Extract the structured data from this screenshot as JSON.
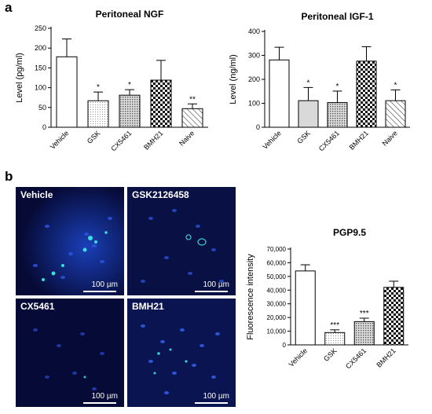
{
  "panels": {
    "a_letter": "a",
    "b_letter": "b"
  },
  "micrographs": [
    {
      "label": "Vehicle",
      "scale": "100 µm"
    },
    {
      "label": "GSK2126458",
      "scale": "100 µm"
    },
    {
      "label": "CX5461",
      "scale": "100 µm"
    },
    {
      "label": "BMH21",
      "scale": "100 µm"
    }
  ],
  "chart_data": [
    {
      "type": "bar",
      "title": "Peritoneal NGF",
      "ylabel": "Level (pg/ml)",
      "xlabel": "",
      "ylim": [
        0,
        250
      ],
      "yticks": [
        0,
        50,
        100,
        150,
        200,
        250
      ],
      "ytick_labels": [
        "0",
        "50",
        "100",
        "150",
        "200",
        "250"
      ],
      "categories": [
        "Vehicle",
        "GSK",
        "CX5461",
        "BMH21",
        "Naive"
      ],
      "values": [
        178,
        67,
        81,
        119,
        47
      ],
      "errors": [
        45,
        22,
        14,
        50,
        12
      ],
      "significance": [
        "",
        "*",
        "*",
        "",
        "**"
      ],
      "patterns": [
        "white",
        "dots",
        "grid",
        "check",
        "diag"
      ]
    },
    {
      "type": "bar",
      "title": "Peritoneal IGF-1",
      "ylabel": "Level (ng/ml)",
      "xlabel": "",
      "ylim": [
        0,
        400
      ],
      "yticks": [
        0,
        100,
        200,
        300,
        400
      ],
      "ytick_labels": [
        "0",
        "100",
        "200",
        "300",
        "400"
      ],
      "categories": [
        "Vehicle",
        "GSK",
        "CX5461",
        "BMH21",
        "Naive"
      ],
      "values": [
        281,
        111,
        103,
        276,
        111
      ],
      "errors": [
        53,
        55,
        48,
        60,
        45
      ],
      "significance": [
        "",
        "*",
        "*",
        "",
        "*"
      ],
      "patterns": [
        "white",
        "lightgray",
        "grid",
        "check",
        "diag"
      ]
    },
    {
      "type": "bar",
      "title": "PGP9.5",
      "ylabel": "Fluorescence intensity",
      "xlabel": "",
      "ylim": [
        0,
        70000
      ],
      "yticks": [
        0,
        10000,
        20000,
        30000,
        40000,
        50000,
        60000,
        70000
      ],
      "ytick_labels": [
        "0",
        "10,000",
        "20,000",
        "30,000",
        "40,000",
        "50,000",
        "60,000",
        "70,000"
      ],
      "categories": [
        "Vehicle",
        "GSK",
        "CX5461",
        "BMH21"
      ],
      "values": [
        54000,
        9000,
        17000,
        42000
      ],
      "errors": [
        4500,
        2000,
        2500,
        4500
      ],
      "significance": [
        "",
        "***",
        "***",
        ""
      ],
      "patterns": [
        "white",
        "dots",
        "grid",
        "check"
      ]
    }
  ]
}
